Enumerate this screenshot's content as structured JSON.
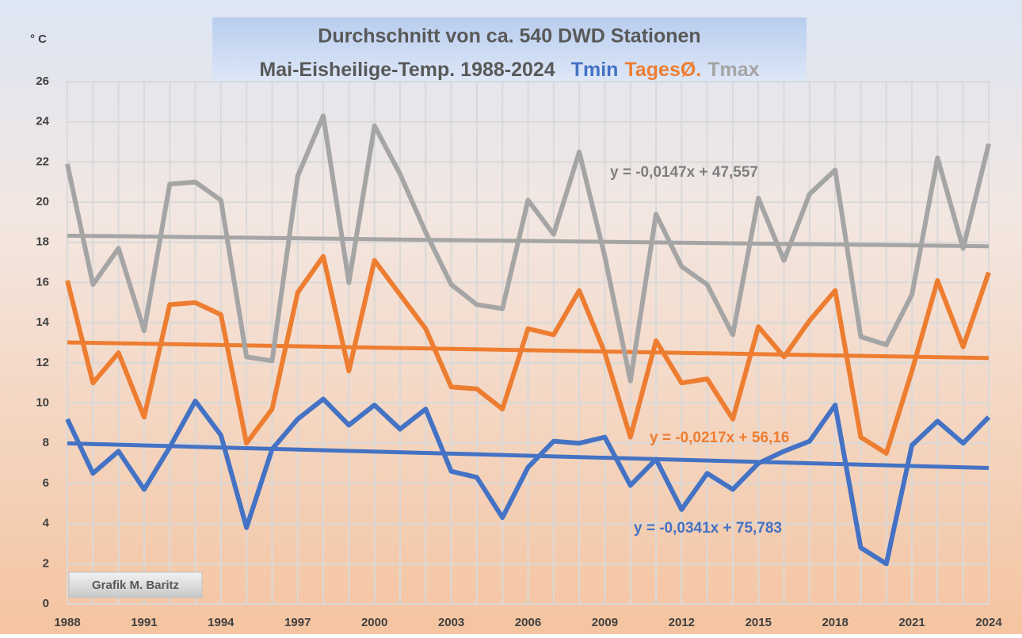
{
  "chart_data": {
    "type": "line",
    "title": [
      "Durchschnitt von ca. 540 DWD Stationen",
      "Mai-Eisheilige-Temp. 1988-2024"
    ],
    "y_label": "° C",
    "annotation": "Grafik M. Baritz",
    "x": [
      1988,
      1989,
      1990,
      1991,
      1992,
      1993,
      1994,
      1995,
      1996,
      1997,
      1998,
      1999,
      2000,
      2001,
      2002,
      2003,
      2004,
      2005,
      2006,
      2007,
      2008,
      2009,
      2010,
      2011,
      2012,
      2013,
      2014,
      2015,
      2016,
      2017,
      2018,
      2019,
      2020,
      2021,
      2022,
      2023,
      2024
    ],
    "series": [
      {
        "name": "Tmin",
        "color": "#4472c4",
        "values": [
          9.2,
          6.5,
          7.6,
          5.7,
          7.8,
          10.1,
          8.4,
          3.8,
          7.7,
          9.2,
          10.2,
          8.9,
          9.9,
          8.7,
          9.7,
          6.6,
          6.3,
          4.3,
          6.8,
          8.1,
          8.0,
          8.3,
          5.9,
          7.2,
          4.7,
          6.5,
          5.7,
          7.0,
          7.6,
          8.1,
          9.9,
          2.8,
          2.0,
          7.9,
          9.1,
          8.0,
          9.3
        ],
        "trend": {
          "slope": -0.0341,
          "intercept": 75.783,
          "label": "y = -0,0341x + 75,783"
        }
      },
      {
        "name": "TagesØ.",
        "color": "#ed7d31",
        "values": [
          16.1,
          11.0,
          12.5,
          9.3,
          14.9,
          15.0,
          14.4,
          8.0,
          9.7,
          15.5,
          17.3,
          11.6,
          17.1,
          15.4,
          13.7,
          10.8,
          10.7,
          9.7,
          13.7,
          13.4,
          15.6,
          12.5,
          8.3,
          13.1,
          11.0,
          11.2,
          9.2,
          13.8,
          12.3,
          14.1,
          15.6,
          8.3,
          7.5,
          11.6,
          16.1,
          12.8,
          16.5
        ],
        "trend": {
          "slope": -0.0217,
          "intercept": 56.16,
          "label": "y = -0,0217x + 56,16"
        }
      },
      {
        "name": "Tmax",
        "color": "#a5a5a5",
        "values": [
          21.9,
          15.9,
          17.7,
          13.6,
          20.9,
          21.0,
          20.1,
          12.3,
          12.1,
          21.3,
          24.3,
          16.0,
          23.8,
          21.4,
          18.5,
          15.9,
          14.9,
          14.7,
          20.1,
          18.4,
          22.5,
          17.3,
          11.1,
          19.4,
          16.8,
          15.9,
          13.4,
          20.2,
          17.1,
          20.4,
          21.6,
          13.3,
          12.9,
          15.4,
          22.2,
          17.7,
          22.9
        ],
        "trend": {
          "slope": -0.0147,
          "intercept": 47.557,
          "label": "y = -0,0147x + 47,557"
        }
      }
    ],
    "xlim": [
      1988,
      2024
    ],
    "xticks": [
      1988,
      1991,
      1994,
      1997,
      2000,
      2003,
      2006,
      2009,
      2012,
      2015,
      2018,
      2021,
      2024
    ],
    "ylim": [
      0,
      26
    ],
    "yticks": [
      0,
      2,
      4,
      6,
      8,
      10,
      12,
      14,
      16,
      18,
      20,
      22,
      24,
      26
    ],
    "grid": true
  }
}
